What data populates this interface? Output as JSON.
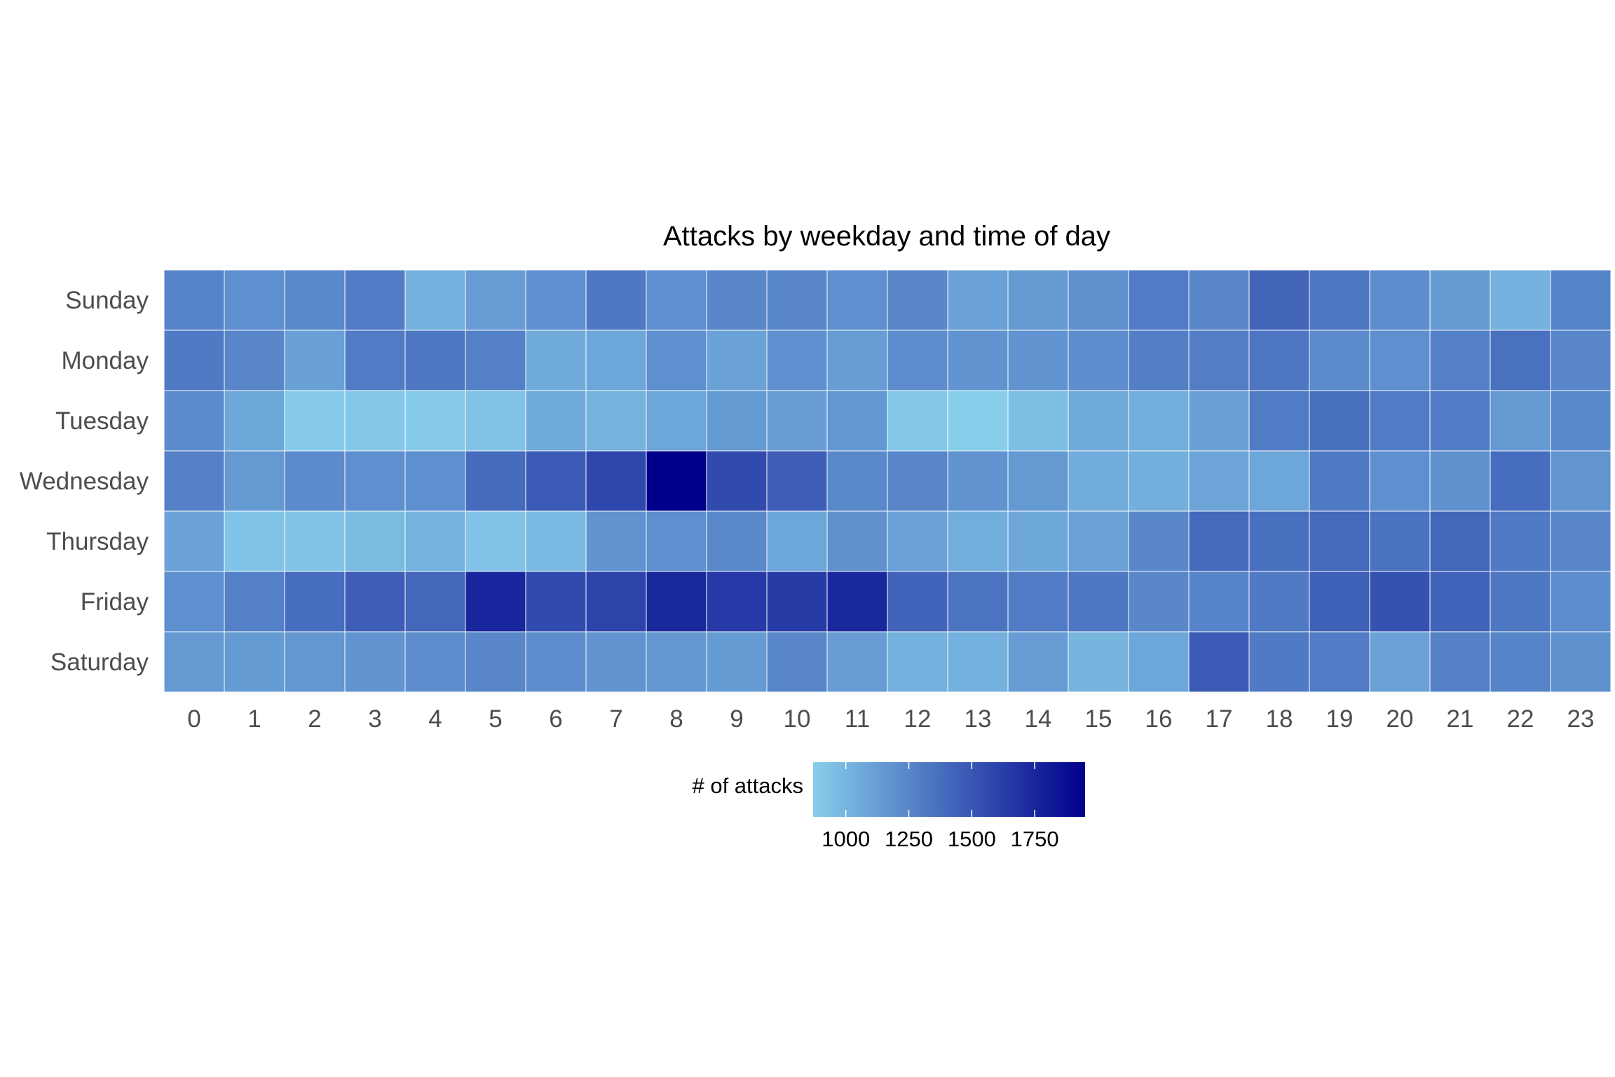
{
  "chart_data": {
    "type": "heatmap",
    "title": "Attacks by weekday and time of day",
    "xlabel": "",
    "ylabel": "",
    "x_categories": [
      "0",
      "1",
      "2",
      "3",
      "4",
      "5",
      "6",
      "7",
      "8",
      "9",
      "10",
      "11",
      "12",
      "13",
      "14",
      "15",
      "16",
      "17",
      "18",
      "19",
      "20",
      "21",
      "22",
      "23"
    ],
    "y_categories": [
      "Sunday",
      "Monday",
      "Tuesday",
      "Wednesday",
      "Thursday",
      "Friday",
      "Saturday"
    ],
    "values": [
      [
        1260,
        1200,
        1230,
        1300,
        1020,
        1130,
        1200,
        1320,
        1200,
        1240,
        1250,
        1200,
        1240,
        1100,
        1140,
        1190,
        1300,
        1250,
        1420,
        1330,
        1210,
        1140,
        1020,
        1260
      ],
      [
        1310,
        1250,
        1110,
        1300,
        1320,
        1280,
        1060,
        1080,
        1200,
        1100,
        1200,
        1130,
        1210,
        1180,
        1180,
        1210,
        1290,
        1290,
        1330,
        1220,
        1200,
        1280,
        1360,
        1250
      ],
      [
        1220,
        1070,
        880,
        900,
        880,
        930,
        1060,
        1010,
        1080,
        1140,
        1120,
        1160,
        900,
        870,
        950,
        1060,
        1030,
        1110,
        1300,
        1370,
        1300,
        1300,
        1150,
        1230
      ],
      [
        1280,
        1150,
        1220,
        1200,
        1200,
        1390,
        1480,
        1580,
        1950,
        1560,
        1460,
        1230,
        1250,
        1180,
        1150,
        1050,
        1030,
        1090,
        1080,
        1310,
        1200,
        1190,
        1380,
        1170
      ],
      [
        1100,
        920,
        920,
        970,
        1010,
        920,
        980,
        1180,
        1200,
        1230,
        1080,
        1190,
        1100,
        1040,
        1070,
        1100,
        1240,
        1400,
        1370,
        1400,
        1350,
        1410,
        1310,
        1250
      ],
      [
        1200,
        1280,
        1380,
        1460,
        1410,
        1750,
        1560,
        1600,
        1740,
        1650,
        1640,
        1740,
        1430,
        1340,
        1300,
        1330,
        1240,
        1260,
        1310,
        1440,
        1520,
        1430,
        1320,
        1210
      ],
      [
        1150,
        1140,
        1160,
        1180,
        1210,
        1250,
        1210,
        1180,
        1160,
        1140,
        1250,
        1130,
        1020,
        1020,
        1130,
        1000,
        1080,
        1480,
        1310,
        1300,
        1100,
        1270,
        1260,
        1190
      ]
    ],
    "color_scale": {
      "low": "#87ceeb",
      "high": "#00008b",
      "min": 870,
      "max": 1950
    },
    "legend": {
      "title": "# of attacks",
      "position": "bottom",
      "ticks": [
        1000,
        1250,
        1500,
        1750
      ]
    },
    "grid": false
  }
}
